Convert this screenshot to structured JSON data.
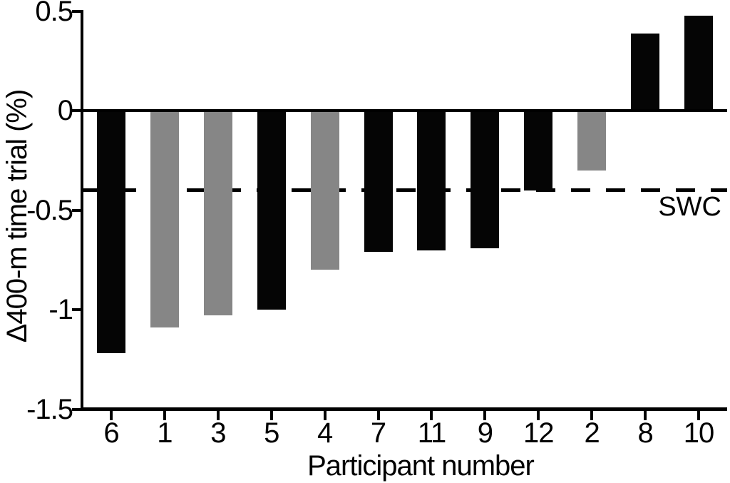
{
  "chart_data": {
    "type": "bar",
    "title": "",
    "xlabel": "Participant number",
    "ylabel": "Δ400-m time trial (%)",
    "ylim": [
      -1.5,
      0.5
    ],
    "yticks": [
      0.5,
      0,
      -0.5,
      -1,
      -1.5
    ],
    "ytick_labels": [
      "0.5",
      "0",
      "-0.5",
      "-1",
      "-1.5"
    ],
    "categories": [
      "6",
      "1",
      "3",
      "5",
      "4",
      "7",
      "11",
      "9",
      "12",
      "2",
      "8",
      "10"
    ],
    "values": [
      -1.22,
      -1.09,
      -1.03,
      -1.0,
      -0.8,
      -0.71,
      -0.7,
      -0.69,
      -0.4,
      -0.3,
      0.39,
      0.48
    ],
    "bar_colors": [
      "black",
      "gray",
      "gray",
      "black",
      "gray",
      "black",
      "black",
      "black",
      "black",
      "gray",
      "black",
      "black"
    ],
    "colors": {
      "black": "#050505",
      "gray": "#868686"
    },
    "reference_line": {
      "value": -0.4,
      "label": "SWC",
      "style": "dashed"
    },
    "grid": false,
    "legend": false
  }
}
